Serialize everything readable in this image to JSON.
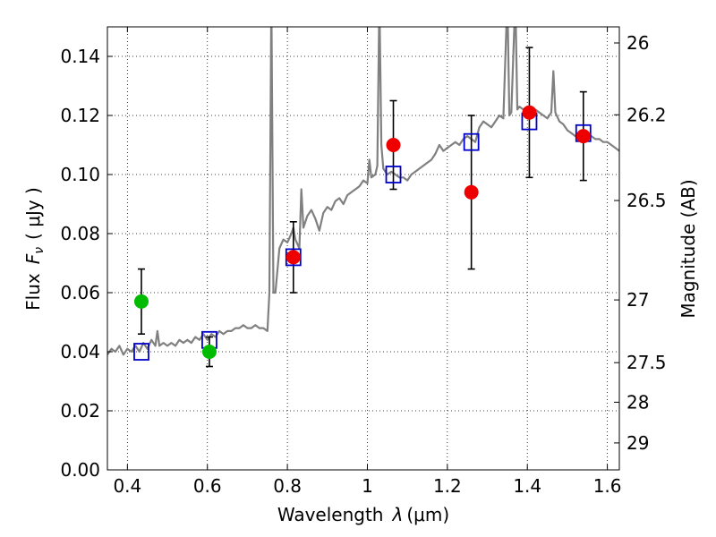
{
  "chart_data": {
    "type": "scatter",
    "xlabel_text": "Wavelength",
    "xlabel_symbol": "λ",
    "xlabel_unit": "(μm)",
    "ylabel_text": "Flux",
    "ylabel_symbol": "F",
    "ylabel_subscript": "ν",
    "ylabel_unit": "( μJy )",
    "ylabel_right": "Magnitude (AB)",
    "xlim": [
      0.35,
      1.63
    ],
    "ylim": [
      0.0,
      0.15
    ],
    "grid": true,
    "xticks": [
      {
        "value": 0.4,
        "label": "0.4"
      },
      {
        "value": 0.6,
        "label": "0.6"
      },
      {
        "value": 0.8,
        "label": "0.8"
      },
      {
        "value": 1.0,
        "label": "1"
      },
      {
        "value": 1.2,
        "label": "1.2"
      },
      {
        "value": 1.4,
        "label": "1.4"
      },
      {
        "value": 1.6,
        "label": "1.6"
      }
    ],
    "yticks": [
      {
        "value": 0.0,
        "label": "0.00"
      },
      {
        "value": 0.02,
        "label": "0.02"
      },
      {
        "value": 0.04,
        "label": "0.04"
      },
      {
        "value": 0.06,
        "label": "0.06"
      },
      {
        "value": 0.08,
        "label": "0.08"
      },
      {
        "value": 0.1,
        "label": "0.10"
      },
      {
        "value": 0.12,
        "label": "0.12"
      },
      {
        "value": 0.14,
        "label": "0.14"
      }
    ],
    "right_ticks": [
      {
        "mag": 26,
        "label": "26"
      },
      {
        "mag": 26.2,
        "label": "26.2"
      },
      {
        "mag": 26.5,
        "label": "26.5"
      },
      {
        "mag": 27,
        "label": "27"
      },
      {
        "mag": 27.5,
        "label": "27.5"
      },
      {
        "mag": 28,
        "label": "28"
      },
      {
        "mag": 29,
        "label": "29"
      }
    ],
    "series": [
      {
        "kind": "line",
        "color": "#808080",
        "points": [
          [
            0.35,
            0.039
          ],
          [
            0.36,
            0.041
          ],
          [
            0.37,
            0.04
          ],
          [
            0.38,
            0.042
          ],
          [
            0.39,
            0.039
          ],
          [
            0.4,
            0.041
          ],
          [
            0.41,
            0.04
          ],
          [
            0.42,
            0.042
          ],
          [
            0.43,
            0.04
          ],
          [
            0.44,
            0.043
          ],
          [
            0.45,
            0.041
          ],
          [
            0.46,
            0.044
          ],
          [
            0.47,
            0.042
          ],
          [
            0.475,
            0.047
          ],
          [
            0.48,
            0.042
          ],
          [
            0.49,
            0.043
          ],
          [
            0.5,
            0.042
          ],
          [
            0.51,
            0.043
          ],
          [
            0.52,
            0.042
          ],
          [
            0.53,
            0.044
          ],
          [
            0.54,
            0.043
          ],
          [
            0.55,
            0.044
          ],
          [
            0.56,
            0.043
          ],
          [
            0.57,
            0.045
          ],
          [
            0.58,
            0.044
          ],
          [
            0.59,
            0.046
          ],
          [
            0.6,
            0.044
          ],
          [
            0.61,
            0.046
          ],
          [
            0.62,
            0.045
          ],
          [
            0.63,
            0.047
          ],
          [
            0.64,
            0.046
          ],
          [
            0.65,
            0.047
          ],
          [
            0.66,
            0.047
          ],
          [
            0.67,
            0.048
          ],
          [
            0.68,
            0.048
          ],
          [
            0.69,
            0.049
          ],
          [
            0.7,
            0.048
          ],
          [
            0.71,
            0.048
          ],
          [
            0.72,
            0.049
          ],
          [
            0.73,
            0.048
          ],
          [
            0.74,
            0.048
          ],
          [
            0.75,
            0.047
          ],
          [
            0.755,
            0.06
          ],
          [
            0.76,
            0.16
          ],
          [
            0.765,
            0.06
          ],
          [
            0.77,
            0.06
          ],
          [
            0.78,
            0.075
          ],
          [
            0.79,
            0.078
          ],
          [
            0.8,
            0.077
          ],
          [
            0.81,
            0.08
          ],
          [
            0.815,
            0.082
          ],
          [
            0.82,
            0.078
          ],
          [
            0.83,
            0.075
          ],
          [
            0.835,
            0.095
          ],
          [
            0.84,
            0.082
          ],
          [
            0.85,
            0.086
          ],
          [
            0.86,
            0.088
          ],
          [
            0.87,
            0.085
          ],
          [
            0.88,
            0.081
          ],
          [
            0.89,
            0.087
          ],
          [
            0.9,
            0.089
          ],
          [
            0.91,
            0.088
          ],
          [
            0.92,
            0.091
          ],
          [
            0.93,
            0.092
          ],
          [
            0.94,
            0.09
          ],
          [
            0.95,
            0.093
          ],
          [
            0.96,
            0.094
          ],
          [
            0.97,
            0.095
          ],
          [
            0.98,
            0.096
          ],
          [
            0.99,
            0.098
          ],
          [
            1.0,
            0.097
          ],
          [
            1.005,
            0.105
          ],
          [
            1.01,
            0.099
          ],
          [
            1.02,
            0.1
          ],
          [
            1.025,
            0.103
          ],
          [
            1.03,
            0.16
          ],
          [
            1.035,
            0.11
          ],
          [
            1.04,
            0.102
          ],
          [
            1.05,
            0.1
          ],
          [
            1.06,
            0.101
          ],
          [
            1.07,
            0.1
          ],
          [
            1.08,
            0.099
          ],
          [
            1.09,
            0.099
          ],
          [
            1.1,
            0.098
          ],
          [
            1.11,
            0.1
          ],
          [
            1.12,
            0.101
          ],
          [
            1.13,
            0.102
          ],
          [
            1.14,
            0.103
          ],
          [
            1.15,
            0.104
          ],
          [
            1.16,
            0.105
          ],
          [
            1.17,
            0.107
          ],
          [
            1.18,
            0.11
          ],
          [
            1.19,
            0.108
          ],
          [
            1.2,
            0.109
          ],
          [
            1.21,
            0.11
          ],
          [
            1.22,
            0.111
          ],
          [
            1.23,
            0.11
          ],
          [
            1.24,
            0.112
          ],
          [
            1.25,
            0.113
          ],
          [
            1.26,
            0.112
          ],
          [
            1.27,
            0.111
          ],
          [
            1.28,
            0.116
          ],
          [
            1.29,
            0.118
          ],
          [
            1.3,
            0.117
          ],
          [
            1.31,
            0.116
          ],
          [
            1.32,
            0.118
          ],
          [
            1.33,
            0.12
          ],
          [
            1.34,
            0.119
          ],
          [
            1.35,
            0.16
          ],
          [
            1.355,
            0.12
          ],
          [
            1.36,
            0.121
          ],
          [
            1.37,
            0.16
          ],
          [
            1.375,
            0.122
          ],
          [
            1.38,
            0.123
          ],
          [
            1.39,
            0.122
          ],
          [
            1.4,
            0.123
          ],
          [
            1.41,
            0.121
          ],
          [
            1.42,
            0.122
          ],
          [
            1.43,
            0.121
          ],
          [
            1.44,
            0.12
          ],
          [
            1.45,
            0.119
          ],
          [
            1.46,
            0.121
          ],
          [
            1.465,
            0.135
          ],
          [
            1.47,
            0.121
          ],
          [
            1.48,
            0.118
          ],
          [
            1.49,
            0.117
          ],
          [
            1.5,
            0.115
          ],
          [
            1.51,
            0.114
          ],
          [
            1.52,
            0.113
          ],
          [
            1.53,
            0.114
          ],
          [
            1.54,
            0.113
          ],
          [
            1.55,
            0.114
          ],
          [
            1.56,
            0.113
          ],
          [
            1.57,
            0.112
          ],
          [
            1.58,
            0.112
          ],
          [
            1.59,
            0.111
          ],
          [
            1.6,
            0.111
          ],
          [
            1.61,
            0.11
          ],
          [
            1.62,
            0.109
          ],
          [
            1.63,
            0.108
          ]
        ]
      },
      {
        "kind": "square",
        "color": "#0000cc",
        "points": [
          [
            0.435,
            0.04
          ],
          [
            0.605,
            0.044
          ],
          [
            0.815,
            0.072
          ],
          [
            1.065,
            0.1
          ],
          [
            1.26,
            0.111
          ],
          [
            1.405,
            0.118
          ],
          [
            1.54,
            0.114
          ]
        ]
      },
      {
        "kind": "circle_err",
        "color": "#00bb00",
        "points": [
          {
            "x": 0.435,
            "y": 0.057,
            "err": 0.011
          },
          {
            "x": 0.605,
            "y": 0.04,
            "err": 0.005
          }
        ]
      },
      {
        "kind": "circle_err",
        "color": "#ee0000",
        "points": [
          {
            "x": 0.815,
            "y": 0.072,
            "err": 0.012
          },
          {
            "x": 1.065,
            "y": 0.11,
            "err": 0.015
          },
          {
            "x": 1.26,
            "y": 0.094,
            "err": 0.026
          },
          {
            "x": 1.405,
            "y": 0.121,
            "err": 0.022
          },
          {
            "x": 1.54,
            "y": 0.113,
            "err": 0.015
          }
        ]
      }
    ]
  }
}
